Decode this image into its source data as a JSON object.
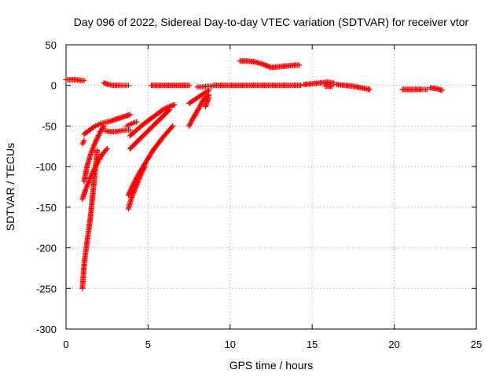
{
  "chart_data": {
    "type": "scatter",
    "title": "Day 096 of 2022, Sidereal Day-to-day VTEC variation (SDTVAR) for receiver vtor",
    "xlabel": "GPS time / hours",
    "ylabel": "SDTVAR / TECUs",
    "xlim": [
      0,
      25
    ],
    "ylim": [
      -300,
      50
    ],
    "xticks": [
      0,
      5,
      10,
      15,
      20,
      25
    ],
    "yticks": [
      -300,
      -250,
      -200,
      -150,
      -100,
      -50,
      0,
      50
    ],
    "grid": true,
    "marker": "+",
    "color": "#ff0000",
    "series": [
      {
        "x": [
          0.0,
          0.3,
          0.6,
          0.9,
          1.1
        ],
        "y": [
          7,
          7,
          7,
          6,
          6
        ]
      },
      {
        "x": [
          2.3,
          2.6,
          2.9,
          3.2,
          3.5,
          3.8
        ],
        "y": [
          3,
          1,
          0,
          0,
          0,
          0
        ]
      },
      {
        "x": [
          5.2,
          5.6,
          6.0,
          6.4,
          6.8,
          7.2,
          7.5
        ],
        "y": [
          0,
          0,
          0,
          0,
          0,
          0,
          0
        ]
      },
      {
        "x": [
          8.0,
          8.3,
          8.6,
          8.9
        ],
        "y": [
          -2,
          -2,
          -1,
          -1
        ]
      },
      {
        "x": [
          9.0,
          9.5,
          10.0,
          10.5,
          11.0,
          11.5,
          12.0,
          12.5,
          13.0,
          13.5,
          14.0,
          14.3
        ],
        "y": [
          0,
          0,
          0,
          0,
          0,
          0,
          0,
          0,
          0,
          0,
          0,
          0
        ]
      },
      {
        "x": [
          10.6,
          11.0,
          11.5,
          12.0,
          12.5,
          13.0,
          13.5,
          14.0,
          14.2
        ],
        "y": [
          30,
          30,
          29,
          26,
          22,
          23,
          24,
          25,
          25
        ]
      },
      {
        "x": [
          14.5,
          15.0,
          15.5,
          16.0,
          16.3
        ],
        "y": [
          1,
          2,
          3,
          4,
          3
        ]
      },
      {
        "x": [
          15.8,
          16.2
        ],
        "y": [
          -1,
          -1
        ]
      },
      {
        "x": [
          16.5,
          17.0,
          17.5,
          18.0,
          18.5
        ],
        "y": [
          1,
          0,
          -1,
          -3,
          -5
        ]
      },
      {
        "x": [
          20.5,
          20.9,
          21.3,
          21.7,
          22.0
        ],
        "y": [
          -5,
          -5,
          -5,
          -5,
          -5
        ]
      },
      {
        "x": [
          22.2,
          22.6,
          22.9
        ],
        "y": [
          -3,
          -4,
          -6
        ]
      },
      {
        "x": [
          1.0,
          1.05,
          1.1,
          1.15,
          1.2,
          1.25,
          1.3,
          1.35,
          1.4,
          1.45,
          1.5,
          1.6,
          1.7,
          1.8,
          1.9
        ],
        "y": [
          -250,
          -235,
          -222,
          -212,
          -205,
          -198,
          -190,
          -183,
          -176,
          -168,
          -160,
          -140,
          -120,
          -100,
          -80
        ]
      },
      {
        "x": [
          1.0,
          1.2,
          1.4,
          1.6,
          1.8,
          2.0,
          2.2,
          2.5
        ],
        "y": [
          -140,
          -128,
          -118,
          -108,
          -100,
          -92,
          -85,
          -78
        ]
      },
      {
        "x": [
          1.1,
          1.3,
          1.5,
          1.7,
          1.9,
          2.1,
          2.3,
          2.5,
          2.7,
          3.0,
          3.3,
          3.6,
          3.9
        ],
        "y": [
          -60,
          -57,
          -54,
          -51,
          -49,
          -47,
          -46,
          -45,
          -44,
          -42,
          -40,
          -38,
          -36
        ]
      },
      {
        "x": [
          1.1,
          1.2,
          1.3,
          1.5,
          1.7,
          1.9,
          2.1,
          2.3
        ],
        "y": [
          -118,
          -108,
          -98,
          -85,
          -74,
          -65,
          -57,
          -50
        ]
      },
      {
        "x": [
          1.0,
          1.1
        ],
        "y": [
          -72,
          -68
        ]
      },
      {
        "x": [
          2.4,
          2.7,
          3.0,
          3.3,
          3.6,
          3.9
        ],
        "y": [
          -56,
          -57,
          -57,
          -56,
          -55,
          -55
        ]
      },
      {
        "x": [
          3.7,
          3.9,
          4.1,
          4.3
        ],
        "y": [
          -50,
          -48,
          -46,
          -45
        ]
      },
      {
        "x": [
          3.8,
          3.9,
          4.0,
          4.2,
          4.4,
          4.6,
          4.8
        ],
        "y": [
          -152,
          -145,
          -138,
          -128,
          -118,
          -108,
          -100
        ]
      },
      {
        "x": [
          3.8,
          4.1,
          4.4,
          4.7,
          5.0,
          5.3,
          5.6,
          5.9,
          6.2,
          6.5
        ],
        "y": [
          -135,
          -122,
          -110,
          -100,
          -90,
          -80,
          -72,
          -64,
          -57,
          -50
        ]
      },
      {
        "x": [
          3.9,
          4.3,
          4.7,
          5.1,
          5.5,
          5.9,
          6.3
        ],
        "y": [
          -78,
          -70,
          -62,
          -54,
          -46,
          -38,
          -30
        ]
      },
      {
        "x": [
          3.9,
          4.3,
          4.7,
          5.1,
          5.5,
          5.9,
          6.3,
          6.6
        ],
        "y": [
          -62,
          -55,
          -48,
          -42,
          -36,
          -30,
          -26,
          -24
        ]
      },
      {
        "x": [
          7.5,
          7.7,
          7.9,
          8.1,
          8.3,
          8.5,
          8.7
        ],
        "y": [
          -50,
          -42,
          -35,
          -28,
          -20,
          -15,
          -12
        ]
      },
      {
        "x": [
          7.5,
          7.8,
          8.1,
          8.4,
          8.7
        ],
        "y": [
          -22,
          -18,
          -14,
          -10,
          -6
        ]
      },
      {
        "x": [
          8.5,
          8.6,
          8.7
        ],
        "y": [
          -26,
          -20,
          -15
        ]
      }
    ]
  }
}
